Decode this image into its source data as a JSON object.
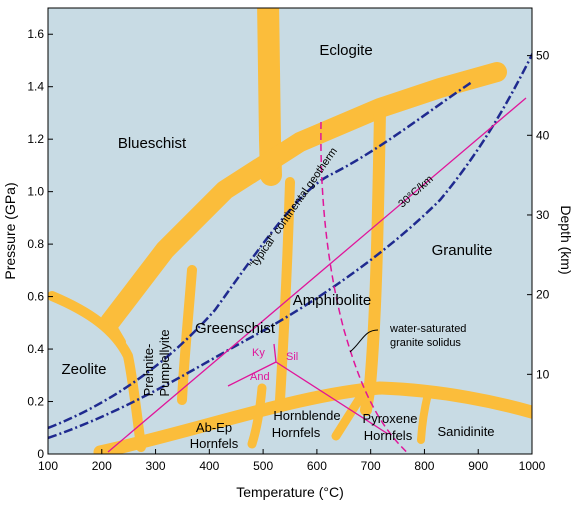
{
  "colors": {
    "background": "#c8dbe4",
    "facies_boundary": "#fbbd3b",
    "geotherm": "#1f2a8f",
    "mineral_lines": "#e0159a"
  },
  "axes": {
    "x_title": "Temperature (°C)",
    "y_left_title": "Pressure (GPa)",
    "y_right_title": "Depth (km)",
    "x_ticks": [
      "100",
      "200",
      "300",
      "400",
      "500",
      "600",
      "700",
      "800",
      "900",
      "1000"
    ],
    "y_left_ticks": [
      "0",
      "0.2",
      "0.4",
      "0.6",
      "0.8",
      "1.0",
      "1.2",
      "1.4",
      "1.6"
    ],
    "y_right_ticks": [
      "10",
      "20",
      "30",
      "40",
      "50"
    ]
  },
  "facies": {
    "eclogite": "Eclogite",
    "blueschist": "Blueschist",
    "granulite": "Granulite",
    "amphibolite": "Amphibolite",
    "greenschist": "Greenschist",
    "zeolite": "Zeolite",
    "prehnite_1": "Prehnite-",
    "prehnite_2": "Pumpellyite",
    "abep_1": "Ab-Ep",
    "abep_2": "Hornfels",
    "hornblende_1": "Hornblende",
    "hornblende_2": "Hornfels",
    "pyroxene_1": "Pyroxene",
    "pyroxene_2": "Hornfels",
    "sanidinite": "Sanidinite"
  },
  "annotations": {
    "geotherm_label": "\"typical\" continental geotherm",
    "gradient_label": "30°C/km",
    "solidus_1": "water-saturated",
    "solidus_2": "granite solidus"
  },
  "minerals": {
    "ky": "Ky",
    "sil": "Sil",
    "and": "And"
  }
}
